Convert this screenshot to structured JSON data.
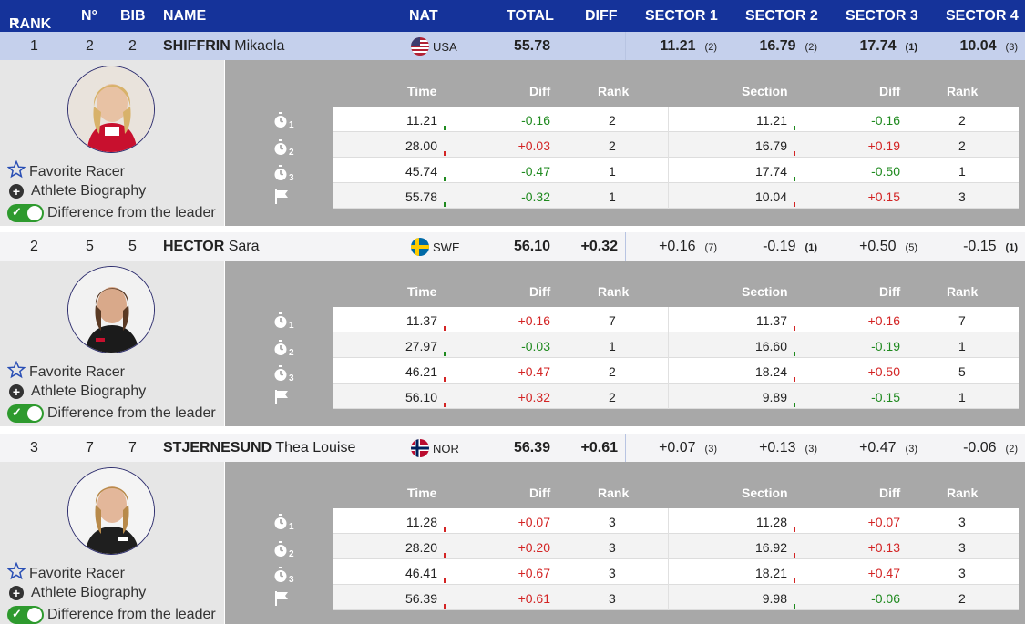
{
  "header": {
    "rank": "RANK",
    "number": "N°",
    "bib": "BIB",
    "name": "NAME",
    "nat": "NAT",
    "total": "TOTAL",
    "diff": "DIFF",
    "sector1": "SECTOR 1",
    "sector2": "SECTOR 2",
    "sector3": "SECTOR 3",
    "sector4": "SECTOR 4"
  },
  "panel_labels": {
    "favorite": "Favorite Racer",
    "biography": "Athlete Biography",
    "difference": "Difference from the leader",
    "col_time": "Time",
    "col_diff": "Diff",
    "col_rank": "Rank",
    "col_section": "Section",
    "col_section_diff": "Diff",
    "col_section_rank": "Rank",
    "split_sub": [
      "1",
      "2",
      "3"
    ]
  },
  "colors": {
    "header_bg": "#15339a",
    "selected_row": "#c5d0ec",
    "faster": "#1f8a1f",
    "slower": "#d32424",
    "toggle_on": "#2e9a2e"
  },
  "racers": [
    {
      "rank": "1",
      "number": "2",
      "bib": "2",
      "last": "SHIFFRIN",
      "first": "Mikaela",
      "nat": "USA",
      "total": "55.78",
      "diff": "",
      "sectors": [
        {
          "val": "11.21",
          "rank": "(2)"
        },
        {
          "val": "16.79",
          "rank": "(2)"
        },
        {
          "val": "17.74",
          "rank": "(1)"
        },
        {
          "val": "10.04",
          "rank": "(3)"
        }
      ],
      "splits": [
        {
          "time": "11.21",
          "diff": "-0.16",
          "rank": "2",
          "section": "11.21",
          "sdiff": "-0.16",
          "srank": "2"
        },
        {
          "time": "28.00",
          "diff": "+0.03",
          "rank": "2",
          "section": "16.79",
          "sdiff": "+0.19",
          "srank": "2"
        },
        {
          "time": "45.74",
          "diff": "-0.47",
          "rank": "1",
          "section": "17.74",
          "sdiff": "-0.50",
          "srank": "1"
        },
        {
          "time": "55.78",
          "diff": "-0.32",
          "rank": "1",
          "section": "10.04",
          "sdiff": "+0.15",
          "srank": "3"
        }
      ]
    },
    {
      "rank": "2",
      "number": "5",
      "bib": "5",
      "last": "HECTOR",
      "first": "Sara",
      "nat": "SWE",
      "total": "56.10",
      "diff": "+0.32",
      "sectors": [
        {
          "val": "+0.16",
          "rank": "(7)"
        },
        {
          "val": "-0.19",
          "rank": "(1)"
        },
        {
          "val": "+0.50",
          "rank": "(5)"
        },
        {
          "val": "-0.15",
          "rank": "(1)"
        }
      ],
      "splits": [
        {
          "time": "11.37",
          "diff": "+0.16",
          "rank": "7",
          "section": "11.37",
          "sdiff": "+0.16",
          "srank": "7"
        },
        {
          "time": "27.97",
          "diff": "-0.03",
          "rank": "1",
          "section": "16.60",
          "sdiff": "-0.19",
          "srank": "1"
        },
        {
          "time": "46.21",
          "diff": "+0.47",
          "rank": "2",
          "section": "18.24",
          "sdiff": "+0.50",
          "srank": "5"
        },
        {
          "time": "56.10",
          "diff": "+0.32",
          "rank": "2",
          "section": "9.89",
          "sdiff": "-0.15",
          "srank": "1"
        }
      ]
    },
    {
      "rank": "3",
      "number": "7",
      "bib": "7",
      "last": "STJERNESUND",
      "first": "Thea Louise",
      "nat": "NOR",
      "total": "56.39",
      "diff": "+0.61",
      "sectors": [
        {
          "val": "+0.07",
          "rank": "(3)"
        },
        {
          "val": "+0.13",
          "rank": "(3)"
        },
        {
          "val": "+0.47",
          "rank": "(3)"
        },
        {
          "val": "-0.06",
          "rank": "(2)"
        }
      ],
      "splits": [
        {
          "time": "11.28",
          "diff": "+0.07",
          "rank": "3",
          "section": "11.28",
          "sdiff": "+0.07",
          "srank": "3"
        },
        {
          "time": "28.20",
          "diff": "+0.20",
          "rank": "3",
          "section": "16.92",
          "sdiff": "+0.13",
          "srank": "3"
        },
        {
          "time": "46.41",
          "diff": "+0.67",
          "rank": "3",
          "section": "18.21",
          "sdiff": "+0.47",
          "srank": "3"
        },
        {
          "time": "56.39",
          "diff": "+0.61",
          "rank": "3",
          "section": "9.98",
          "sdiff": "-0.06",
          "srank": "2"
        }
      ]
    }
  ]
}
